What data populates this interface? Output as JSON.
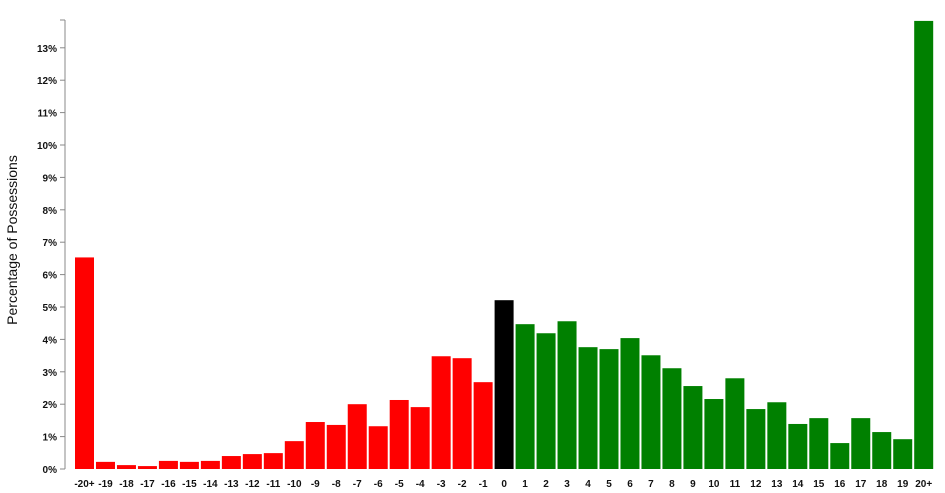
{
  "chart_data": {
    "type": "bar",
    "title": "",
    "xlabel": "",
    "ylabel": "Percentage of Possessions",
    "ylim": [
      0,
      13.9
    ],
    "yticks": [
      "0%",
      "1%",
      "2%",
      "3%",
      "4%",
      "5%",
      "6%",
      "7%",
      "8%",
      "9%",
      "10%",
      "11%",
      "12%",
      "13%"
    ],
    "grid": false,
    "categories": [
      "-20+",
      "-19",
      "-18",
      "-17",
      "-16",
      "-15",
      "-14",
      "-13",
      "-12",
      "-11",
      "-10",
      "-9",
      "-8",
      "-7",
      "-6",
      "-5",
      "-4",
      "-3",
      "-2",
      "-1",
      "0",
      "1",
      "2",
      "3",
      "4",
      "5",
      "6",
      "7",
      "8",
      "9",
      "10",
      "11",
      "12",
      "13",
      "14",
      "15",
      "16",
      "17",
      "18",
      "19",
      "20+"
    ],
    "values": [
      6.53,
      0.22,
      0.12,
      0.09,
      0.25,
      0.22,
      0.25,
      0.4,
      0.46,
      0.49,
      0.86,
      1.45,
      1.36,
      2.0,
      1.32,
      2.13,
      1.91,
      3.48,
      3.42,
      2.68,
      5.21,
      4.47,
      4.19,
      4.56,
      3.76,
      3.7,
      4.04,
      3.51,
      3.11,
      2.56,
      2.16,
      2.8,
      1.85,
      2.06,
      1.39,
      1.57,
      0.8,
      1.57,
      1.14,
      0.92,
      13.83
    ],
    "colors": {
      "negative": "#ff0000",
      "zero": "#000000",
      "positive": "#008000"
    }
  }
}
